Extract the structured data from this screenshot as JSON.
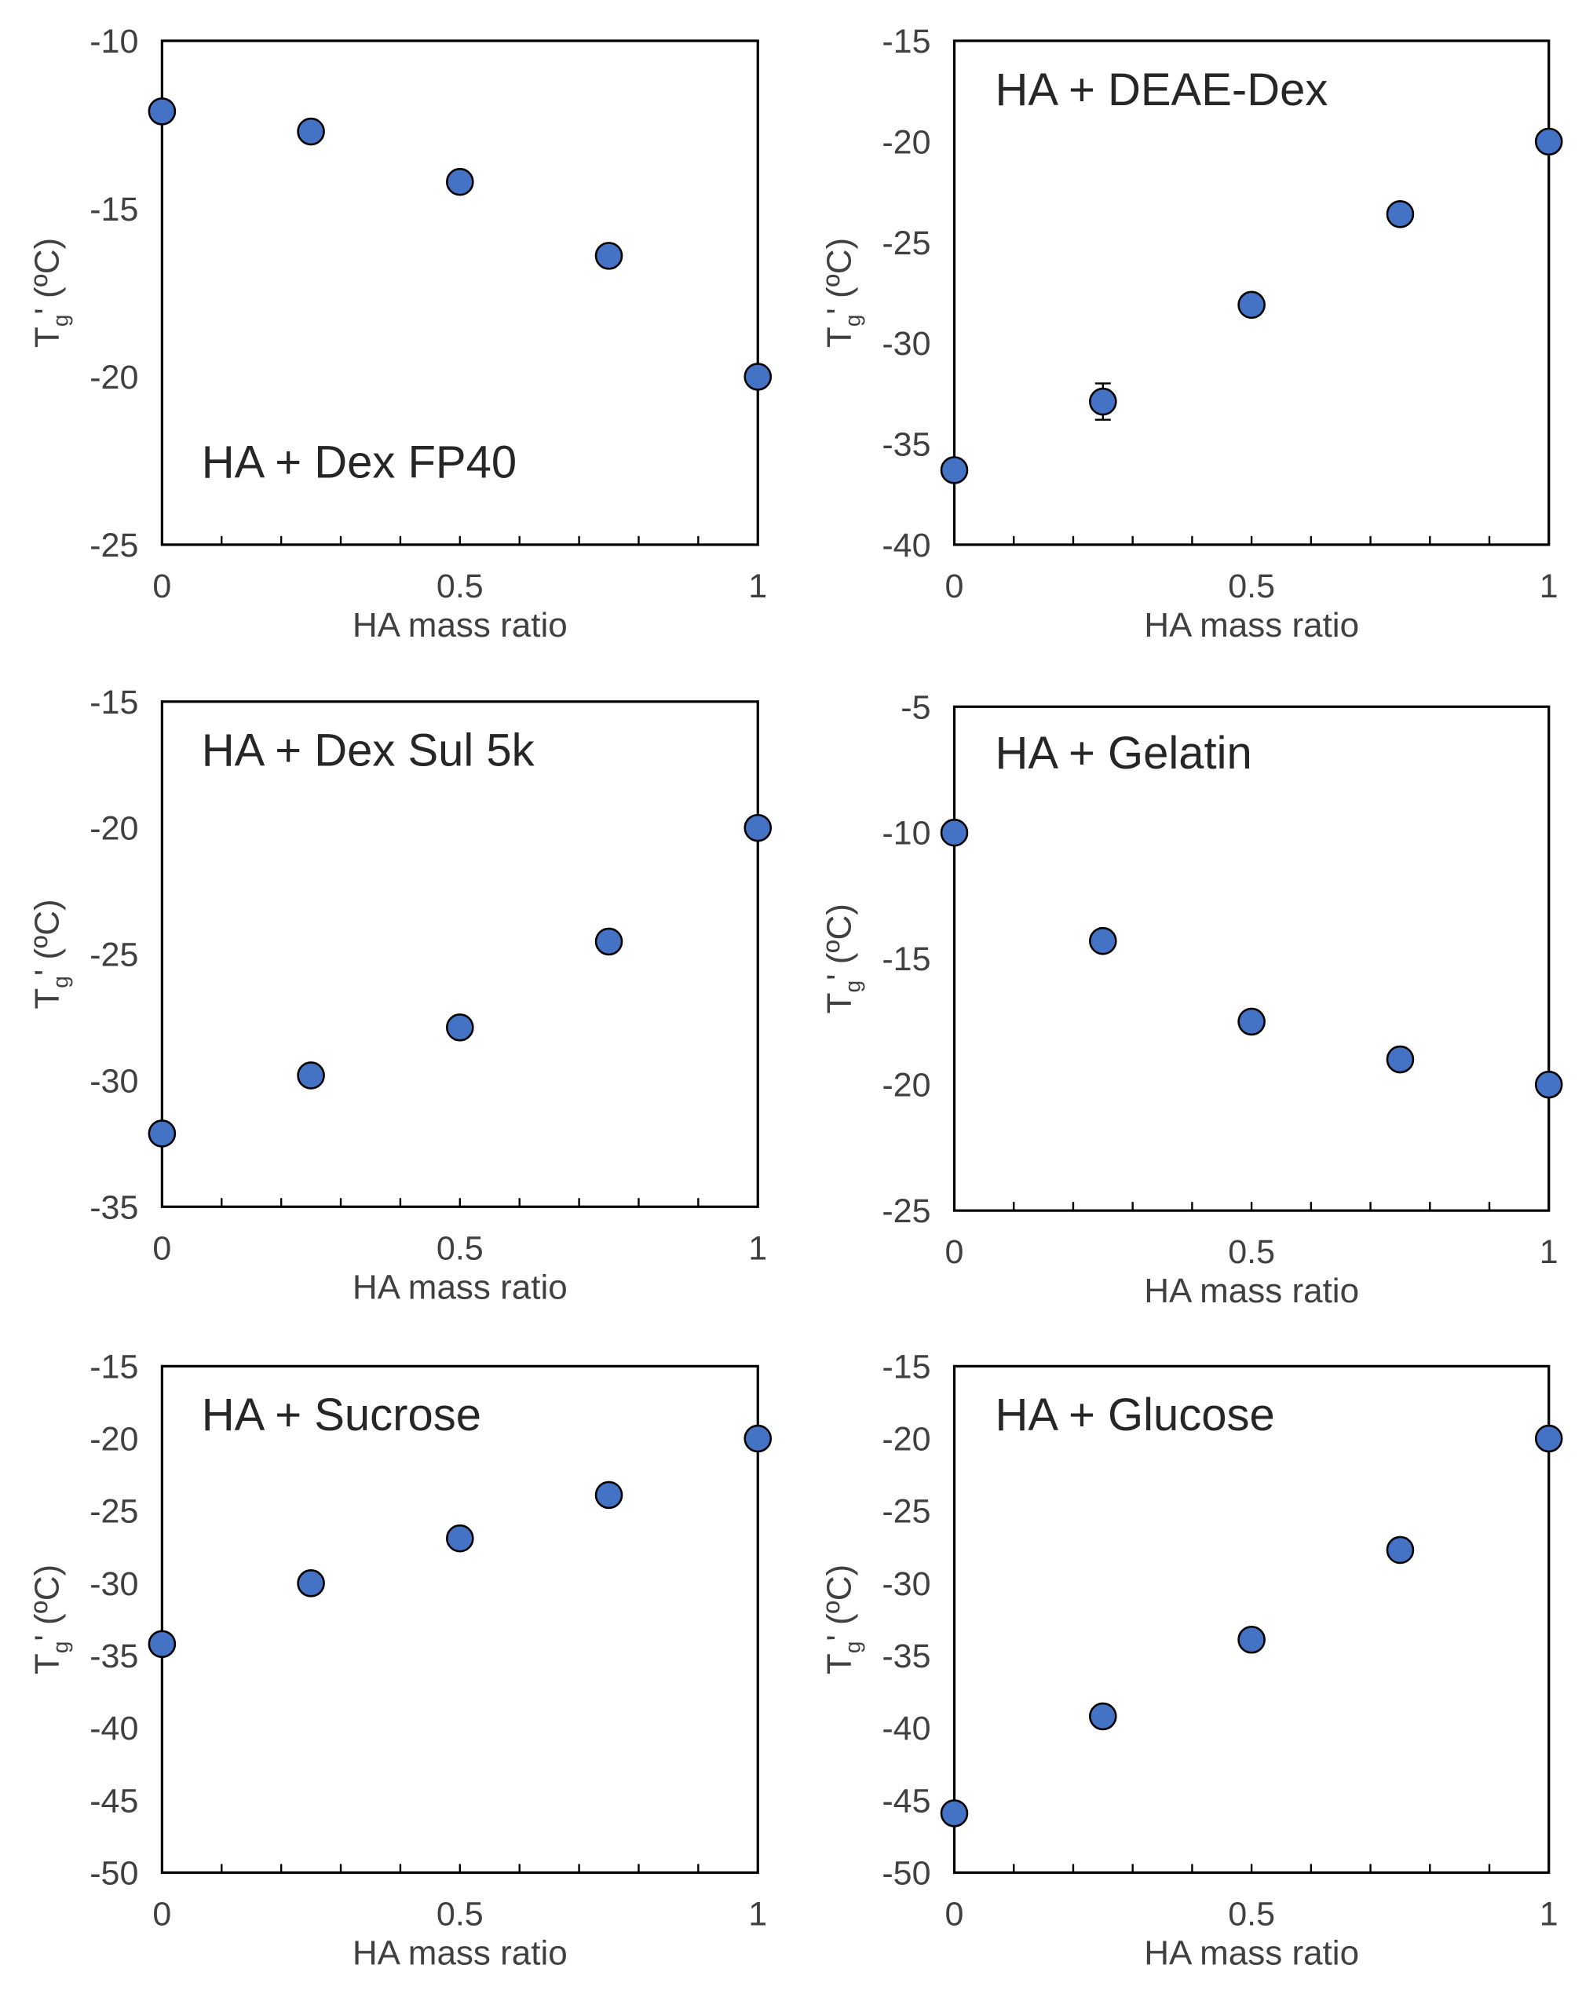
{
  "chart_data": [
    {
      "type": "scatter",
      "annotation": "HA + Dex FP40",
      "xlabel": "HA mass ratio",
      "ylabel_main": "T",
      "ylabel_sub": "g",
      "ylabel_rest": "' (ºC)",
      "xlim": [
        0,
        1
      ],
      "ylim": [
        -25,
        -10
      ],
      "yticks": [
        -10,
        -15,
        -20,
        -25
      ],
      "xtick_labels": [
        {
          "v": 0,
          "t": "0"
        },
        {
          "v": 0.5,
          "t": "0.5"
        },
        {
          "v": 1,
          "t": "1"
        }
      ],
      "minor_ticks": [
        0.1,
        0.2,
        0.3,
        0.4,
        0.5,
        0.6,
        0.7,
        0.8,
        0.9
      ],
      "marker_color": "#4472C4",
      "series": [
        {
          "x": [
            0,
            0.25,
            0.5,
            0.75,
            1
          ],
          "y": [
            -12.1,
            -12.7,
            -14.2,
            -16.4,
            -20.0
          ],
          "err": [
            0,
            0,
            0,
            0,
            0
          ]
        }
      ]
    },
    {
      "type": "scatter",
      "annotation": "HA + DEAE-Dex",
      "xlabel": "HA mass ratio",
      "ylabel_main": "T",
      "ylabel_sub": "g",
      "ylabel_rest": "' (ºC)",
      "xlim": [
        0,
        1
      ],
      "ylim": [
        -40,
        -15
      ],
      "yticks": [
        -15,
        -20,
        -25,
        -30,
        -35,
        -40
      ],
      "xtick_labels": [
        {
          "v": 0,
          "t": "0"
        },
        {
          "v": 0.5,
          "t": "0.5"
        },
        {
          "v": 1,
          "t": "1"
        }
      ],
      "minor_ticks": [
        0.1,
        0.2,
        0.3,
        0.4,
        0.5,
        0.6,
        0.7,
        0.8,
        0.9
      ],
      "marker_color": "#4472C4",
      "series": [
        {
          "x": [
            0,
            0.25,
            0.5,
            0.75,
            1
          ],
          "y": [
            -36.3,
            -32.9,
            -28.1,
            -23.6,
            -20.0
          ],
          "err": [
            0,
            0.9,
            0,
            0,
            0
          ]
        }
      ]
    },
    {
      "type": "scatter",
      "annotation": "HA + Dex Sul 5k",
      "xlabel": "HA mass ratio",
      "ylabel_main": "T",
      "ylabel_sub": "g",
      "ylabel_rest": "' (ºC)",
      "xlim": [
        0,
        1
      ],
      "ylim": [
        -35,
        -15
      ],
      "yticks": [
        -15,
        -20,
        -25,
        -30,
        -35
      ],
      "xtick_labels": [
        {
          "v": 0,
          "t": "0"
        },
        {
          "v": 0.5,
          "t": "0.5"
        },
        {
          "v": 1,
          "t": "1"
        }
      ],
      "minor_ticks": [
        0.1,
        0.2,
        0.3,
        0.4,
        0.5,
        0.6,
        0.7,
        0.8,
        0.9
      ],
      "marker_color": "#4472C4",
      "series": [
        {
          "x": [
            0,
            0.25,
            0.5,
            0.75,
            1
          ],
          "y": [
            -32.1,
            -29.8,
            -27.9,
            -24.5,
            -20.0
          ],
          "err": [
            0,
            0,
            0,
            0,
            0
          ]
        }
      ]
    },
    {
      "type": "scatter",
      "annotation": "HA + Gelatin",
      "xlabel": "HA mass ratio",
      "ylabel_main": "T",
      "ylabel_sub": "g",
      "ylabel_rest": "' (ºC)",
      "xlim": [
        0,
        1
      ],
      "ylim": [
        -25,
        -5
      ],
      "yticks": [
        -5,
        -10,
        -15,
        -20,
        -25
      ],
      "xtick_labels": [
        {
          "v": 0,
          "t": "0"
        },
        {
          "v": 0.5,
          "t": "0.5"
        },
        {
          "v": 1,
          "t": "1"
        }
      ],
      "minor_ticks": [
        0.1,
        0.2,
        0.3,
        0.4,
        0.5,
        0.6,
        0.7,
        0.8,
        0.9
      ],
      "marker_color": "#4472C4",
      "series": [
        {
          "x": [
            0,
            0.25,
            0.5,
            0.75,
            1
          ],
          "y": [
            -10.0,
            -14.3,
            -17.5,
            -19.0,
            -20.0
          ],
          "err": [
            0,
            0,
            0,
            0,
            0
          ]
        }
      ]
    },
    {
      "type": "scatter",
      "annotation": "HA + Sucrose",
      "xlabel": "HA mass ratio",
      "ylabel_main": "T",
      "ylabel_sub": "g",
      "ylabel_rest": "' (ºC)",
      "xlim": [
        0,
        1
      ],
      "ylim": [
        -50,
        -15
      ],
      "yticks": [
        -15,
        -20,
        -25,
        -30,
        -35,
        -40,
        -45,
        -50
      ],
      "xtick_labels": [
        {
          "v": 0,
          "t": "0"
        },
        {
          "v": 0.5,
          "t": "0.5"
        },
        {
          "v": 1,
          "t": "1"
        }
      ],
      "minor_ticks": [
        0.1,
        0.2,
        0.3,
        0.4,
        0.5,
        0.6,
        0.7,
        0.8,
        0.9
      ],
      "marker_color": "#4472C4",
      "series": [
        {
          "x": [
            0,
            0.25,
            0.5,
            0.75,
            1
          ],
          "y": [
            -34.2,
            -30.0,
            -26.9,
            -23.9,
            -20.0
          ],
          "err": [
            0,
            0,
            0,
            0,
            0
          ]
        }
      ]
    },
    {
      "type": "scatter",
      "annotation": "HA + Glucose",
      "xlabel": "HA mass ratio",
      "ylabel_main": "T",
      "ylabel_sub": "g",
      "ylabel_rest": "' (ºC)",
      "xlim": [
        0,
        1
      ],
      "ylim": [
        -50,
        -15
      ],
      "yticks": [
        -15,
        -20,
        -25,
        -30,
        -35,
        -40,
        -45,
        -50
      ],
      "xtick_labels": [
        {
          "v": 0,
          "t": "0"
        },
        {
          "v": 0.5,
          "t": "0.5"
        },
        {
          "v": 1,
          "t": "1"
        }
      ],
      "minor_ticks": [
        0.1,
        0.2,
        0.3,
        0.4,
        0.5,
        0.6,
        0.7,
        0.8,
        0.9
      ],
      "marker_color": "#4472C4",
      "series": [
        {
          "x": [
            0,
            0.25,
            0.5,
            0.75,
            1
          ],
          "y": [
            -45.9,
            -39.2,
            -33.9,
            -27.7,
            -20.0
          ],
          "err": [
            0,
            0,
            0,
            0,
            0
          ]
        }
      ]
    }
  ]
}
